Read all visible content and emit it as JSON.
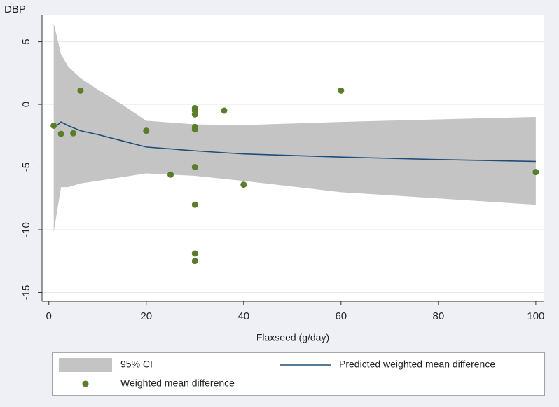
{
  "chart_data": {
    "type": "scatter",
    "ylabel": "DBP",
    "xlabel": "Flaxseed (g/day)",
    "xlim": [
      -1.4,
      101.6
    ],
    "ylim": [
      -15.7,
      7.1
    ],
    "xticks": [
      0,
      20,
      40,
      60,
      80,
      100
    ],
    "yticks": [
      -15,
      -10,
      -5,
      0,
      5
    ],
    "grid": true,
    "legend": "bottom",
    "series": [
      {
        "name": "95% CI",
        "kind": "band",
        "color": "#c4c4c4",
        "x": [
          1,
          2.5,
          4,
          6.5,
          10,
          15,
          20,
          30,
          40,
          60,
          80,
          100
        ],
        "upper": [
          6.5,
          4.0,
          3.0,
          2.1,
          1.2,
          0.0,
          -1.3,
          -1.6,
          -1.65,
          -1.4,
          -1.2,
          -1.0
        ],
        "lower": [
          -10.2,
          -6.6,
          -6.6,
          -6.3,
          -6.1,
          -5.8,
          -5.5,
          -5.7,
          -6.1,
          -7.0,
          -7.5,
          -8.0
        ]
      },
      {
        "name": "Predicted weighted mean difference",
        "kind": "line",
        "color": "#1f4e79",
        "x": [
          1,
          2.5,
          4,
          6.5,
          10,
          15,
          20,
          30,
          40,
          60,
          80,
          100
        ],
        "values": [
          -1.9,
          -1.4,
          -1.7,
          -2.1,
          -2.4,
          -2.9,
          -3.4,
          -3.7,
          -3.95,
          -4.2,
          -4.4,
          -4.55
        ]
      },
      {
        "name": "Weighted mean difference",
        "kind": "points",
        "color": "#5a7d2a",
        "x": [
          1,
          2.5,
          5,
          6.5,
          20,
          25,
          30,
          30,
          30,
          30,
          30,
          30,
          30,
          30,
          30,
          36,
          40,
          60,
          100
        ],
        "values": [
          -1.7,
          -2.35,
          -2.3,
          1.1,
          -2.1,
          -5.6,
          -0.3,
          -0.5,
          -0.8,
          -1.8,
          -2.0,
          -5.0,
          -8.0,
          -11.9,
          -12.5,
          -0.5,
          -6.4,
          1.1,
          -5.4
        ]
      }
    ]
  }
}
